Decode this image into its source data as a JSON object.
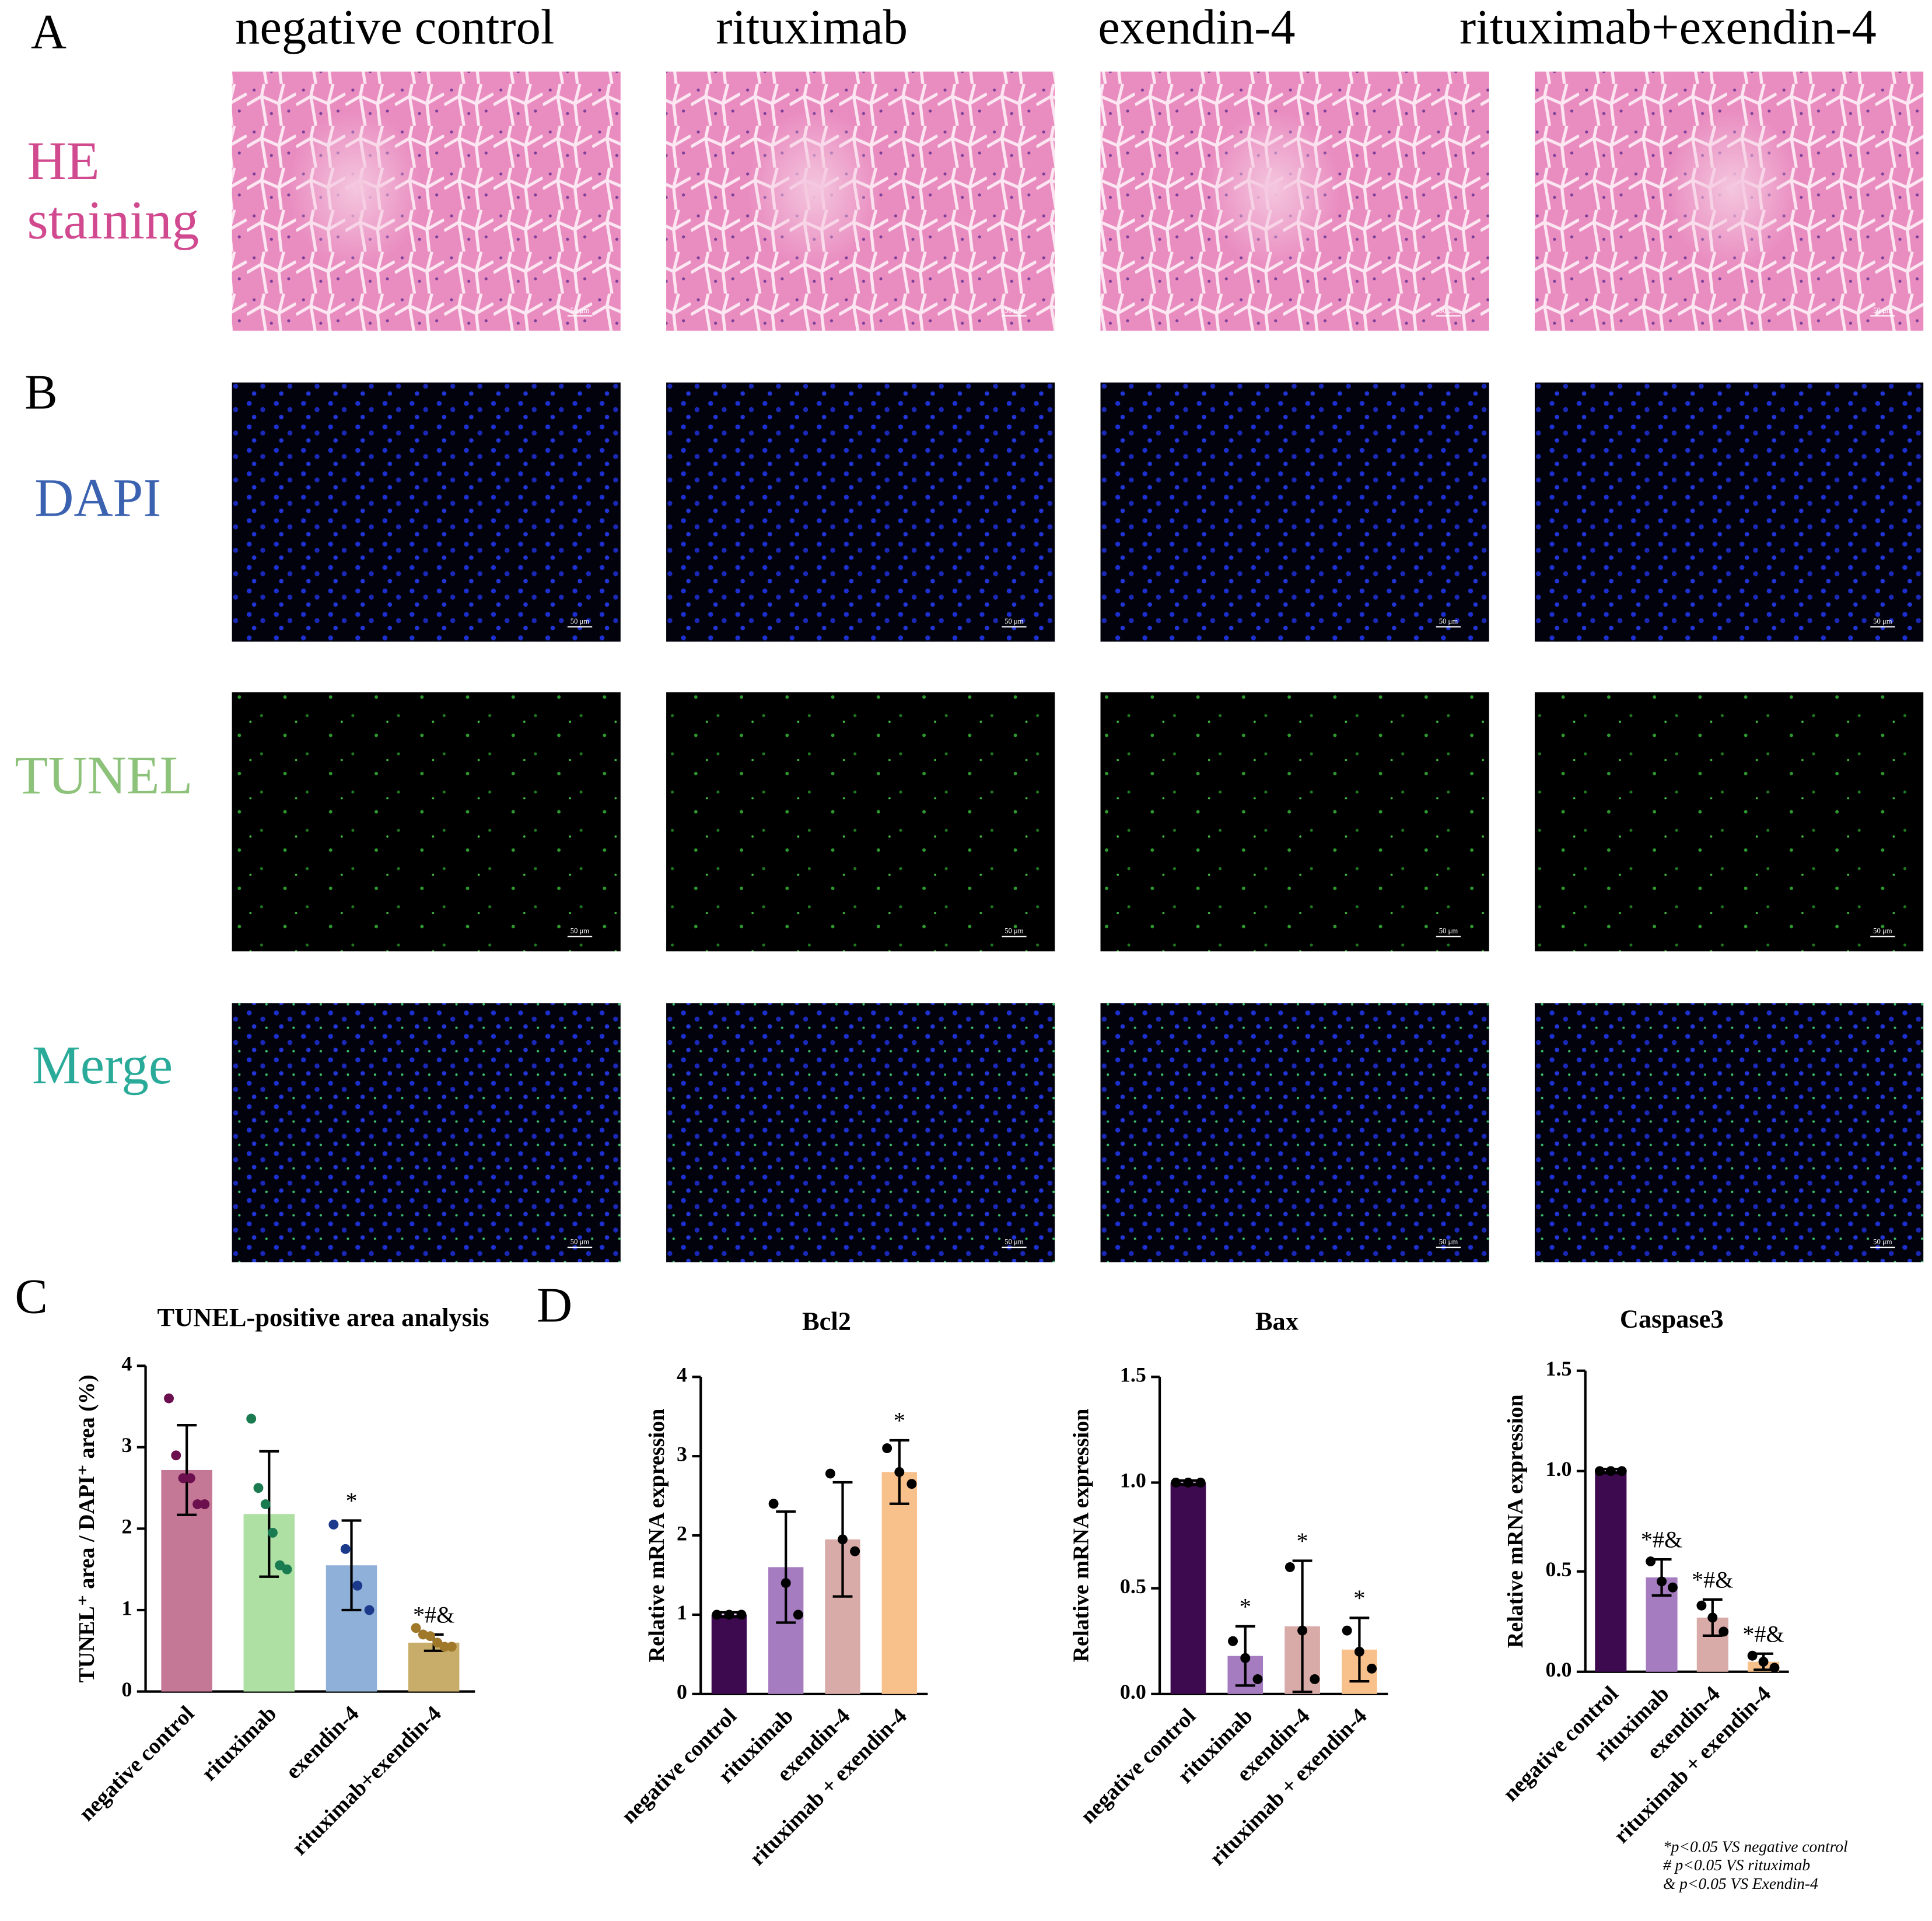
{
  "panels": [
    "A",
    "B",
    "C",
    "D"
  ],
  "columns": [
    "negative control",
    "rituximab",
    "exendin-4",
    "rituximab+exendin-4"
  ],
  "rows": {
    "he": [
      "HE",
      "staining"
    ],
    "dapi": "DAPI",
    "tunel": "TUNEL",
    "merge": "Merge"
  },
  "scale_bar": "50 μm",
  "footnote": [
    "*p<0.05 VS negative control",
    "# p<0.05 VS rituximab",
    "& p<0.05 VS Exendin-4"
  ],
  "chart_data": [
    {
      "type": "bar",
      "title": "TUNEL-positive area analysis",
      "y_label": "TUNEL⁺ area / DAPI⁺ area (%)",
      "categories": [
        "negative control",
        "rituximab",
        "exendin-4",
        "rituximab+exendin-4"
      ],
      "values": [
        2.72,
        2.18,
        1.55,
        0.6
      ],
      "errors": [
        0.55,
        0.77,
        0.55,
        0.1
      ],
      "points": [
        [
          3.6,
          2.9,
          2.62,
          2.62,
          2.3,
          2.3
        ],
        [
          3.35,
          2.5,
          2.3,
          1.95,
          1.55,
          1.5
        ],
        [
          2.05,
          1.75,
          1.3,
          1.0
        ],
        [
          0.78,
          0.7,
          0.68,
          0.6,
          0.55,
          0.55
        ]
      ],
      "annotations": [
        null,
        null,
        "*",
        "*#&"
      ],
      "colors": [
        "#c47896",
        "#aee0a4",
        "#8fb0d8",
        "#c8ad6a"
      ],
      "point_colors": [
        "#6b0f4f",
        "#1a7a50",
        "#1b3a8c",
        "#a0782a"
      ],
      "ylim": [
        0,
        4
      ],
      "yticks": [
        0,
        1,
        2,
        3,
        4
      ]
    },
    {
      "type": "bar",
      "title": "Bcl2",
      "y_label": "Relative mRNA expression",
      "categories": [
        "negative control",
        "rituximab",
        "exendin-4",
        "rituximab + exendin-4"
      ],
      "values": [
        1,
        1.6,
        1.95,
        2.8
      ],
      "errors": [
        0.03,
        0.7,
        0.72,
        0.4
      ],
      "points": [
        [
          1,
          1,
          1
        ],
        [
          2.4,
          1.4,
          1.0
        ],
        [
          2.78,
          1.95,
          1.8
        ],
        [
          3.1,
          2.8,
          2.65
        ]
      ],
      "annotations": [
        null,
        null,
        null,
        "*"
      ],
      "colors": [
        "#3d0a4f",
        "#a57cc0",
        "#d8aaa8",
        "#f8c08a"
      ],
      "point_colors": [
        "#000000",
        "#000000",
        "#000000",
        "#000000"
      ],
      "ylim": [
        0,
        4
      ],
      "yticks": [
        0,
        1,
        2,
        3,
        4
      ]
    },
    {
      "type": "bar",
      "title": "Bax",
      "y_label": "Relative mRNA expression",
      "categories": [
        "negative control",
        "rituximab",
        "exendin-4",
        "rituximab + exendin-4"
      ],
      "values": [
        1,
        0.18,
        0.32,
        0.21
      ],
      "errors": [
        0.01,
        0.14,
        0.31,
        0.15
      ],
      "points": [
        [
          1,
          1,
          1
        ],
        [
          0.25,
          0.17,
          0.07
        ],
        [
          0.6,
          0.3,
          0.07
        ],
        [
          0.3,
          0.2,
          0.12
        ]
      ],
      "annotations": [
        null,
        "*",
        "*",
        "*"
      ],
      "colors": [
        "#3d0a4f",
        "#a57cc0",
        "#d8aaa8",
        "#f8c08a"
      ],
      "point_colors": [
        "#000000",
        "#000000",
        "#000000",
        "#000000"
      ],
      "ylim": [
        0,
        1.5
      ],
      "yticks": [
        {
          "value": 0,
          "label": "0.0"
        },
        {
          "value": 0.5,
          "label": "0.5"
        },
        {
          "value": 1,
          "label": "1.0"
        },
        {
          "value": 1.5,
          "label": "1.5"
        }
      ]
    },
    {
      "type": "bar",
      "title": "Caspase3",
      "y_label": "Relative mRNA expression",
      "categories": [
        "negative control",
        "rituximab",
        "exendin-4",
        "rituximab + exendin-4"
      ],
      "values": [
        1,
        0.47,
        0.27,
        0.05
      ],
      "errors": [
        0.01,
        0.09,
        0.09,
        0.04
      ],
      "points": [
        [
          1,
          1,
          1
        ],
        [
          0.55,
          0.45,
          0.42
        ],
        [
          0.33,
          0.27,
          0.2
        ],
        [
          0.08,
          0.05,
          0.02
        ]
      ],
      "annotations": [
        null,
        "*#&",
        "*#&",
        "*#&"
      ],
      "colors": [
        "#3d0a4f",
        "#a57cc0",
        "#d8aaa8",
        "#f8c08a"
      ],
      "point_colors": [
        "#000000",
        "#000000",
        "#000000",
        "#000000"
      ],
      "ylim": [
        0,
        1.5
      ],
      "yticks": [
        {
          "value": 0,
          "label": "0.0"
        },
        {
          "value": 0.5,
          "label": "0.5"
        },
        {
          "value": 1,
          "label": "1.0"
        },
        {
          "value": 1.5,
          "label": "1.5"
        }
      ]
    }
  ]
}
